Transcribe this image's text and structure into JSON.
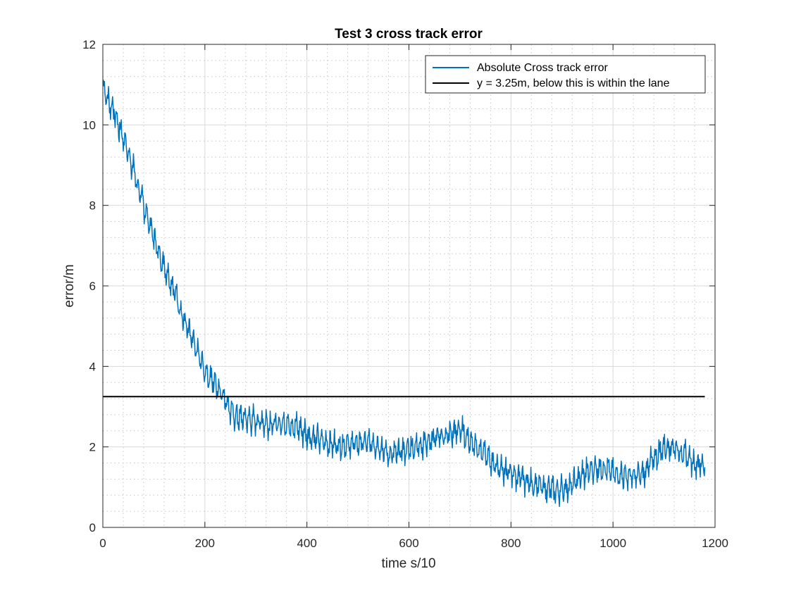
{
  "chart_data": {
    "type": "line",
    "title": "Test 3 cross track error",
    "xlabel": "time s/10",
    "ylabel": "error/m",
    "xlim": [
      0,
      1200
    ],
    "ylim": [
      0,
      12
    ],
    "xticks": [
      0,
      200,
      400,
      600,
      800,
      1000,
      1200
    ],
    "yticks": [
      0,
      2,
      4,
      6,
      8,
      10,
      12
    ],
    "grid": "major and minor",
    "legend_position": "top-right",
    "series": [
      {
        "name": "Absolute Cross track error",
        "color": "#0072BD",
        "style": "noisy oscillating line (about ±0.3 m), sampled every 1 s/10",
        "x_start": 0,
        "x_end": 1180,
        "envelope": [
          [
            0,
            11.0
          ],
          [
            10,
            10.6
          ],
          [
            20,
            10.4
          ],
          [
            30,
            10.0
          ],
          [
            40,
            9.7
          ],
          [
            50,
            9.3
          ],
          [
            60,
            8.9
          ],
          [
            70,
            8.4
          ],
          [
            80,
            8.0
          ],
          [
            90,
            7.6
          ],
          [
            100,
            7.2
          ],
          [
            110,
            6.8
          ],
          [
            120,
            6.5
          ],
          [
            130,
            6.2
          ],
          [
            140,
            5.9
          ],
          [
            150,
            5.5
          ],
          [
            160,
            5.1
          ],
          [
            170,
            4.8
          ],
          [
            180,
            4.5
          ],
          [
            190,
            4.2
          ],
          [
            200,
            3.9
          ],
          [
            210,
            3.7
          ],
          [
            220,
            3.6
          ],
          [
            230,
            3.4
          ],
          [
            240,
            3.2
          ],
          [
            250,
            2.9
          ],
          [
            260,
            2.75
          ],
          [
            280,
            2.7
          ],
          [
            300,
            2.65
          ],
          [
            320,
            2.6
          ],
          [
            340,
            2.55
          ],
          [
            360,
            2.6
          ],
          [
            380,
            2.5
          ],
          [
            400,
            2.3
          ],
          [
            420,
            2.2
          ],
          [
            440,
            2.1
          ],
          [
            460,
            2.05
          ],
          [
            480,
            2.05
          ],
          [
            500,
            2.1
          ],
          [
            520,
            2.1
          ],
          [
            540,
            2.05
          ],
          [
            560,
            1.8
          ],
          [
            580,
            1.85
          ],
          [
            600,
            1.95
          ],
          [
            620,
            2.05
          ],
          [
            640,
            2.15
          ],
          [
            660,
            2.25
          ],
          [
            680,
            2.3
          ],
          [
            700,
            2.45
          ],
          [
            720,
            2.15
          ],
          [
            740,
            1.95
          ],
          [
            760,
            1.65
          ],
          [
            780,
            1.45
          ],
          [
            800,
            1.35
          ],
          [
            820,
            1.2
          ],
          [
            840,
            1.1
          ],
          [
            860,
            1.0
          ],
          [
            880,
            0.95
          ],
          [
            890,
            0.9
          ],
          [
            900,
            0.95
          ],
          [
            920,
            1.05
          ],
          [
            940,
            1.3
          ],
          [
            960,
            1.45
          ],
          [
            980,
            1.5
          ],
          [
            1000,
            1.35
          ],
          [
            1020,
            1.3
          ],
          [
            1040,
            1.25
          ],
          [
            1060,
            1.35
          ],
          [
            1080,
            1.7
          ],
          [
            1100,
            2.0
          ],
          [
            1120,
            2.0
          ],
          [
            1140,
            1.8
          ],
          [
            1160,
            1.6
          ],
          [
            1180,
            1.55
          ]
        ]
      },
      {
        "name": "y = 3.25m, below this is within the lane",
        "color": "#000000",
        "x": [
          0,
          1180
        ],
        "y": [
          3.25,
          3.25
        ]
      }
    ]
  }
}
